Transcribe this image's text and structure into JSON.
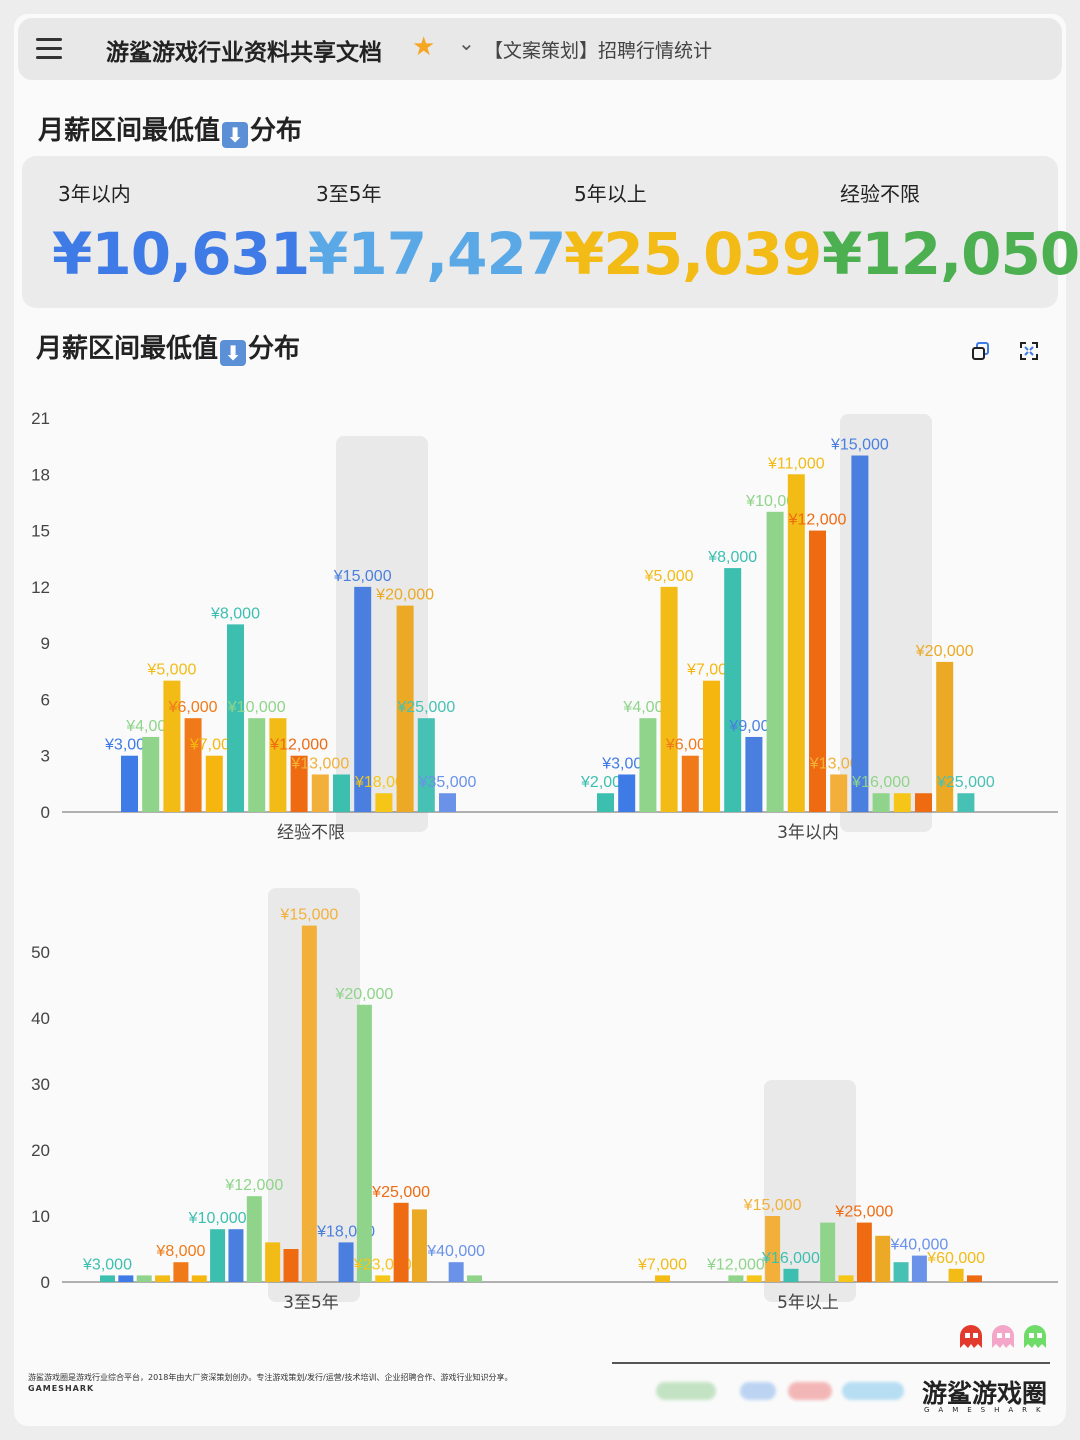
{
  "header": {
    "doc_title": "游鲨游戏行业资料共享文档",
    "breadcrumb": "【文案策划】招聘行情统计",
    "menu_icon": "menu-icon",
    "star_icon": "star-icon",
    "chevron_icon": "chevron-down-icon"
  },
  "section1": {
    "title_before": "月薪区间最低值",
    "title_after": "分布",
    "arrow": "⬇"
  },
  "stats": [
    {
      "label": "3年以内",
      "value": "¥10,631",
      "color": "#3f7be6"
    },
    {
      "label": "3至5年",
      "value": "¥17,427",
      "color": "#5aa9e6"
    },
    {
      "label": "5年以上",
      "value": "¥25,039",
      "color": "#f2bb16"
    },
    {
      "label": "经验不限",
      "value": "¥12,050",
      "color": "#4caf50"
    }
  ],
  "section2": {
    "title_before": "月薪区间最低值",
    "title_after": "分布",
    "arrow": "⬇"
  },
  "toolbar": {
    "copy_icon": "copy-icon",
    "expand_icon": "expand-icon"
  },
  "chart_data": [
    {
      "type": "bar",
      "ylim": [
        0,
        21
      ],
      "yticks": [
        0,
        3,
        6,
        9,
        12,
        15,
        18,
        21
      ],
      "categories": [
        "经验不限",
        "3年以内"
      ],
      "groups": [
        {
          "category": "经验不限",
          "bars": [
            {
              "label": "¥3,000",
              "value": 3,
              "color": "#3f7be6"
            },
            {
              "label": "¥4,000",
              "value": 4,
              "color": "#8fd48a"
            },
            {
              "label": "¥5,000",
              "value": 7,
              "color": "#f2bb16"
            },
            {
              "label": "¥6,000",
              "value": 5,
              "color": "#f07a1a"
            },
            {
              "label": "¥7,000",
              "value": 3,
              "color": "#f5b70f"
            },
            {
              "label": "¥8,000",
              "value": 10,
              "color": "#3dbfb0"
            },
            {
              "label": "¥10,000",
              "value": 5,
              "color": "#8fd48a"
            },
            {
              "label": "",
              "value": 5,
              "color": "#f2bb16"
            },
            {
              "label": "¥12,000",
              "value": 3,
              "color": "#ee6b12"
            },
            {
              "label": "¥13,000",
              "value": 2,
              "color": "#f2b03a"
            },
            {
              "label": "",
              "value": 2,
              "color": "#3dbfb0"
            },
            {
              "label": "¥15,000",
              "value": 12,
              "color": "#4a7fe0"
            },
            {
              "label": "¥18,000",
              "value": 1,
              "color": "#f5c518"
            },
            {
              "label": "¥20,000",
              "value": 11,
              "color": "#eba925"
            },
            {
              "label": "¥25,000",
              "value": 5,
              "color": "#47c1b3"
            },
            {
              "label": "¥35,000",
              "value": 1,
              "color": "#6a92e8"
            }
          ]
        },
        {
          "category": "3年以内",
          "bars": [
            {
              "label": "¥2,000",
              "value": 1,
              "color": "#3dbfb0"
            },
            {
              "label": "¥3,000",
              "value": 2,
              "color": "#3f7be6"
            },
            {
              "label": "¥4,000",
              "value": 5,
              "color": "#8fd48a"
            },
            {
              "label": "¥5,000",
              "value": 12,
              "color": "#f2bb16"
            },
            {
              "label": "¥6,000",
              "value": 3,
              "color": "#f07a1a"
            },
            {
              "label": "¥7,000",
              "value": 7,
              "color": "#f5b70f"
            },
            {
              "label": "¥8,000",
              "value": 13,
              "color": "#3dbfb0"
            },
            {
              "label": "¥9,000",
              "value": 4,
              "color": "#4a7fe0"
            },
            {
              "label": "¥10,000",
              "value": 16,
              "color": "#8fd48a"
            },
            {
              "label": "¥11,000",
              "value": 18,
              "color": "#f2bb16"
            },
            {
              "label": "¥12,000",
              "value": 15,
              "color": "#ee6b12"
            },
            {
              "label": "¥13,000",
              "value": 2,
              "color": "#f2b03a"
            },
            {
              "label": "¥15,000",
              "value": 19,
              "color": "#4a7fe0"
            },
            {
              "label": "¥16,000",
              "value": 1,
              "color": "#8fd48a"
            },
            {
              "label": "",
              "value": 1,
              "color": "#f5c518"
            },
            {
              "label": "",
              "value": 1,
              "color": "#ee6b12"
            },
            {
              "label": "¥20,000",
              "value": 8,
              "color": "#eba925"
            },
            {
              "label": "¥25,000",
              "value": 1,
              "color": "#47c1b3"
            }
          ]
        }
      ]
    },
    {
      "type": "bar",
      "ylim": [
        0,
        55
      ],
      "yticks": [
        0,
        10,
        20,
        30,
        40,
        50
      ],
      "categories": [
        "3至5年",
        "5年以上"
      ],
      "groups": [
        {
          "category": "3至5年",
          "bars": [
            {
              "label": "¥3,000",
              "value": 1,
              "color": "#3dbfb0"
            },
            {
              "label": "",
              "value": 1,
              "color": "#3f7be6"
            },
            {
              "label": "",
              "value": 1,
              "color": "#8fd48a"
            },
            {
              "label": "",
              "value": 1,
              "color": "#f2bb16"
            },
            {
              "label": "¥8,000",
              "value": 3,
              "color": "#f07a1a"
            },
            {
              "label": "",
              "value": 1,
              "color": "#f5b70f"
            },
            {
              "label": "¥10,000",
              "value": 8,
              "color": "#3dbfb0"
            },
            {
              "label": "",
              "value": 8,
              "color": "#4a7fe0"
            },
            {
              "label": "¥12,000",
              "value": 13,
              "color": "#8fd48a"
            },
            {
              "label": "",
              "value": 6,
              "color": "#f2bb16"
            },
            {
              "label": "",
              "value": 5,
              "color": "#ee6b12"
            },
            {
              "label": "¥15,000",
              "value": 54,
              "color": "#f2b03a"
            },
            {
              "label": "",
              "value": 0,
              "color": "#3dbfb0"
            },
            {
              "label": "¥18,000",
              "value": 6,
              "color": "#4a7fe0"
            },
            {
              "label": "¥20,000",
              "value": 42,
              "color": "#8fd48a"
            },
            {
              "label": "¥23,000",
              "value": 1,
              "color": "#f5c518"
            },
            {
              "label": "¥25,000",
              "value": 12,
              "color": "#ee6b12"
            },
            {
              "label": "",
              "value": 11,
              "color": "#eba925"
            },
            {
              "label": "",
              "value": 0,
              "color": "#47c1b3"
            },
            {
              "label": "¥40,000",
              "value": 3,
              "color": "#6a92e8"
            },
            {
              "label": "",
              "value": 1,
              "color": "#8fd48a"
            }
          ]
        },
        {
          "category": "5年以上",
          "bars": [
            {
              "label": "¥7,000",
              "value": 1,
              "color": "#f2bb16"
            },
            {
              "label": "",
              "value": 0,
              "color": "#3dbfb0"
            },
            {
              "label": "",
              "value": 0,
              "color": "#4a7fe0"
            },
            {
              "label": "",
              "value": 0,
              "color": "#8fd48a"
            },
            {
              "label": "¥12,000",
              "value": 1,
              "color": "#8fd48a"
            },
            {
              "label": "",
              "value": 1,
              "color": "#f5c518"
            },
            {
              "label": "¥15,000",
              "value": 10,
              "color": "#f2b03a"
            },
            {
              "label": "¥16,000",
              "value": 2,
              "color": "#3dbfb0"
            },
            {
              "label": "",
              "value": 0,
              "color": "#4a7fe0"
            },
            {
              "label": "",
              "value": 9,
              "color": "#8fd48a"
            },
            {
              "label": "",
              "value": 1,
              "color": "#f5c518"
            },
            {
              "label": "¥25,000",
              "value": 9,
              "color": "#ee6b12"
            },
            {
              "label": "",
              "value": 7,
              "color": "#eba925"
            },
            {
              "label": "",
              "value": 3,
              "color": "#47c1b3"
            },
            {
              "label": "¥40,000",
              "value": 4,
              "color": "#6a92e8"
            },
            {
              "label": "",
              "value": 0,
              "color": "#8fd48a"
            },
            {
              "label": "¥60,000",
              "value": 2,
              "color": "#f2bb16"
            },
            {
              "label": "",
              "value": 1,
              "color": "#ee6b12"
            }
          ]
        }
      ]
    }
  ],
  "footer": {
    "description": "游鲨游戏圈是游戏行业综合平台，2018年由大厂资深策划创办。专注游戏策划/发行/运营/技术培训、企业招聘合作、游戏行业知识分享。",
    "brand_small": "GAMESHARK",
    "brand_cn": "游鲨游戏圈",
    "brand_en": "GAMESHARK",
    "ghost_icons": [
      {
        "name": "ghost-red-icon",
        "color": "#e23b2e"
      },
      {
        "name": "ghost-pink-icon",
        "color": "#f4a6c8"
      },
      {
        "name": "ghost-green-icon",
        "color": "#6fdc6a"
      }
    ]
  }
}
